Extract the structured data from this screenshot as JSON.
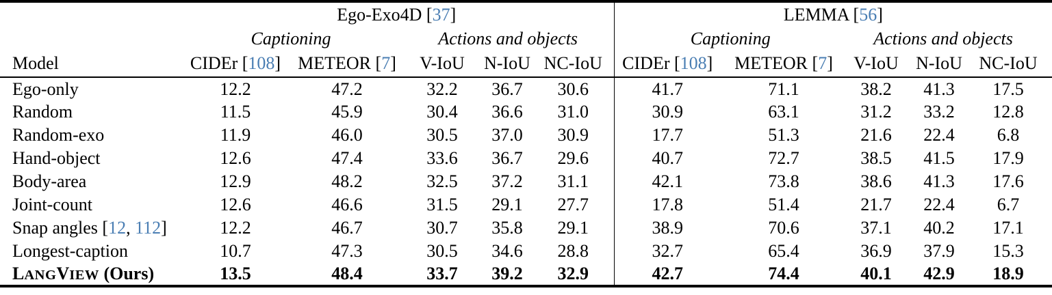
{
  "colors": {
    "citation_blue": "#4a7eb3",
    "text": "#000000",
    "rule": "#000000",
    "background": "#ffffff"
  },
  "header": {
    "model_label": "Model",
    "groups": [
      {
        "id": "ego-exo4d",
        "title_segments": [
          {
            "t": "Ego-Exo4D ["
          },
          {
            "t": "37",
            "cite": true
          },
          {
            "t": "]"
          }
        ],
        "captioning_label": "Captioning",
        "actions_label": "Actions and objects",
        "metrics": [
          [
            {
              "t": "CIDEr ["
            },
            {
              "t": "108",
              "cite": true
            },
            {
              "t": "]"
            }
          ],
          [
            {
              "t": "METEOR ["
            },
            {
              "t": "7",
              "cite": true
            },
            {
              "t": "]"
            }
          ],
          [
            {
              "t": "V-IoU"
            }
          ],
          [
            {
              "t": "N-IoU"
            }
          ],
          [
            {
              "t": "NC-IoU"
            }
          ]
        ]
      },
      {
        "id": "lemma",
        "title_segments": [
          {
            "t": "LEMMA ["
          },
          {
            "t": "56",
            "cite": true
          },
          {
            "t": "]"
          }
        ],
        "captioning_label": "Captioning",
        "actions_label": "Actions and objects",
        "metrics": [
          [
            {
              "t": "CIDEr ["
            },
            {
              "t": "108",
              "cite": true
            },
            {
              "t": "]"
            }
          ],
          [
            {
              "t": "METEOR ["
            },
            {
              "t": "7",
              "cite": true
            },
            {
              "t": "]"
            }
          ],
          [
            {
              "t": "V-IoU"
            }
          ],
          [
            {
              "t": "N-IoU"
            }
          ],
          [
            {
              "t": "NC-IoU"
            }
          ]
        ]
      }
    ]
  },
  "rows": [
    {
      "model_segments": [
        {
          "t": "Ego-only"
        }
      ],
      "values": [
        "12.2",
        "47.2",
        "32.2",
        "36.7",
        "30.6",
        "41.7",
        "71.1",
        "38.2",
        "41.3",
        "17.5"
      ],
      "bold": false
    },
    {
      "model_segments": [
        {
          "t": "Random"
        }
      ],
      "values": [
        "11.5",
        "45.9",
        "30.4",
        "36.6",
        "31.0",
        "30.9",
        "63.1",
        "31.2",
        "33.2",
        "12.8"
      ],
      "bold": false
    },
    {
      "model_segments": [
        {
          "t": "Random-exo"
        }
      ],
      "values": [
        "11.9",
        "46.0",
        "30.5",
        "37.0",
        "30.9",
        "17.7",
        "51.3",
        "21.6",
        "22.4",
        "6.8"
      ],
      "bold": false
    },
    {
      "model_segments": [
        {
          "t": "Hand-object"
        }
      ],
      "values": [
        "12.6",
        "47.4",
        "33.6",
        "36.7",
        "29.6",
        "40.7",
        "72.7",
        "38.5",
        "41.5",
        "17.9"
      ],
      "bold": false
    },
    {
      "model_segments": [
        {
          "t": "Body-area"
        }
      ],
      "values": [
        "12.9",
        "48.2",
        "32.5",
        "37.2",
        "31.1",
        "42.1",
        "73.8",
        "38.6",
        "41.3",
        "17.6"
      ],
      "bold": false
    },
    {
      "model_segments": [
        {
          "t": "Joint-count"
        }
      ],
      "values": [
        "12.6",
        "46.6",
        "31.5",
        "29.1",
        "27.7",
        "17.8",
        "51.4",
        "21.7",
        "22.4",
        "6.7"
      ],
      "bold": false
    },
    {
      "model_segments": [
        {
          "t": "Snap angles ["
        },
        {
          "t": "12",
          "cite": true
        },
        {
          "t": ", "
        },
        {
          "t": "112",
          "cite": true
        },
        {
          "t": "]"
        }
      ],
      "values": [
        "12.2",
        "46.7",
        "30.7",
        "35.8",
        "29.1",
        "38.9",
        "70.6",
        "37.1",
        "40.2",
        "17.1"
      ],
      "bold": false
    },
    {
      "model_segments": [
        {
          "t": "Longest-caption"
        }
      ],
      "values": [
        "10.7",
        "47.3",
        "30.5",
        "34.6",
        "28.8",
        "32.7",
        "65.4",
        "36.9",
        "37.9",
        "15.3"
      ],
      "bold": false
    },
    {
      "model_segments": [
        {
          "t": "L"
        },
        {
          "t": "ang",
          "sc": true
        },
        {
          "t": "V"
        },
        {
          "t": "iew",
          "sc": true
        },
        {
          "t": " (Ours)"
        }
      ],
      "values": [
        "13.5",
        "48.4",
        "33.7",
        "39.2",
        "32.9",
        "42.7",
        "74.4",
        "40.1",
        "42.9",
        "18.9"
      ],
      "bold": true
    }
  ]
}
